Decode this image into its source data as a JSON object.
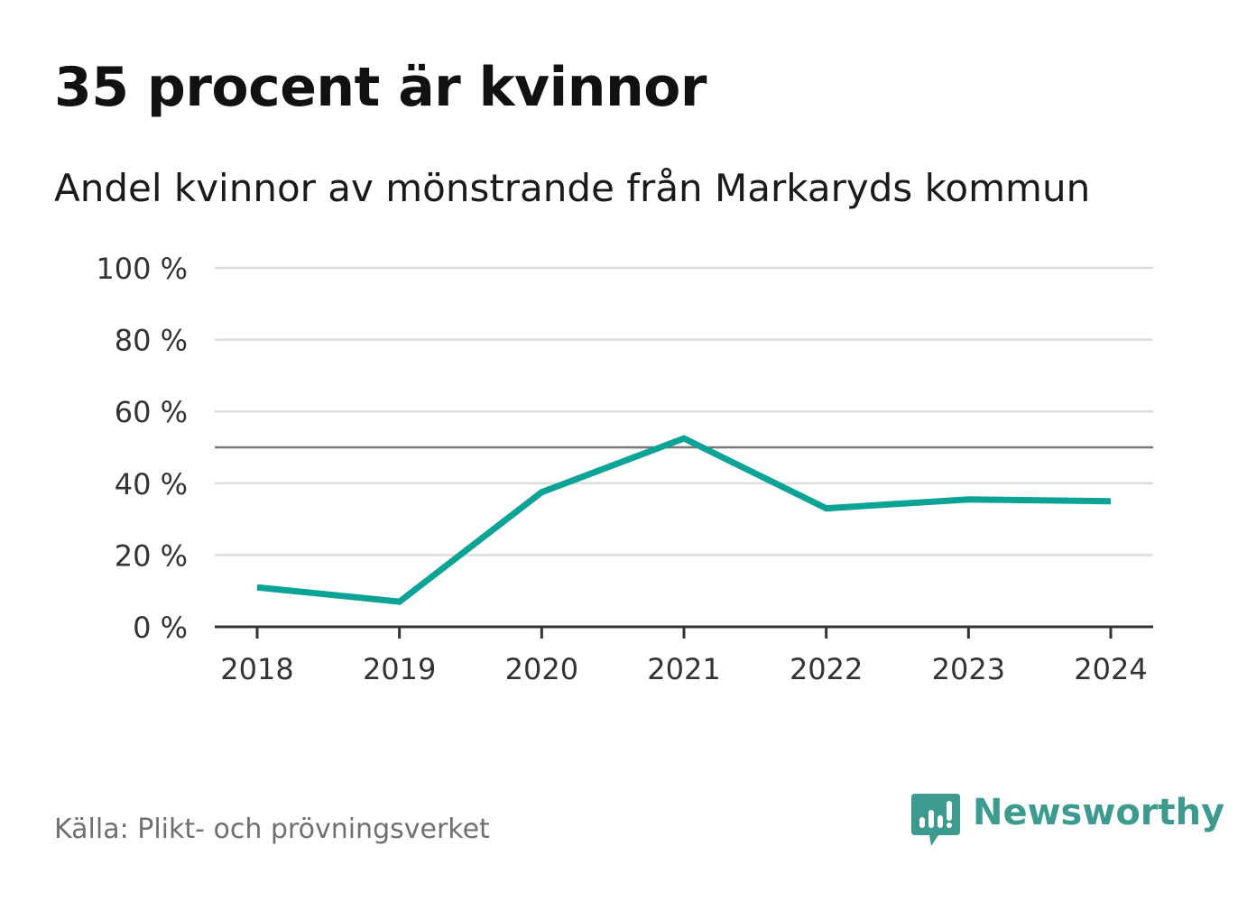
{
  "chart_data": {
    "type": "line",
    "title": "35 procent är kvinnor",
    "subtitle": "Andel kvinnor av mönstrande från Markaryds kommun",
    "categories": [
      "2018",
      "2019",
      "2020",
      "2021",
      "2022",
      "2023",
      "2024"
    ],
    "series": [
      {
        "name": "Andel kvinnor",
        "values": [
          11,
          7,
          37.5,
          52.5,
          33,
          35.5,
          35
        ]
      }
    ],
    "y_ticks": [
      0,
      20,
      40,
      60,
      80,
      100
    ],
    "y_tick_labels": [
      "0 %",
      "20 %",
      "40 %",
      "60 %",
      "80 %",
      "100 %"
    ],
    "ylim": [
      0,
      100
    ],
    "reference_line": 50,
    "xlabel": "",
    "ylabel": "",
    "grid": true
  },
  "footer": {
    "source": "Källa: Plikt- och prövningsverket",
    "brand": "Newsworthy"
  },
  "colors": {
    "line": "#0aa396",
    "grid": "#dddddd",
    "reference": "#777777",
    "axis": "#333333",
    "brand": "#3d9a8e"
  }
}
